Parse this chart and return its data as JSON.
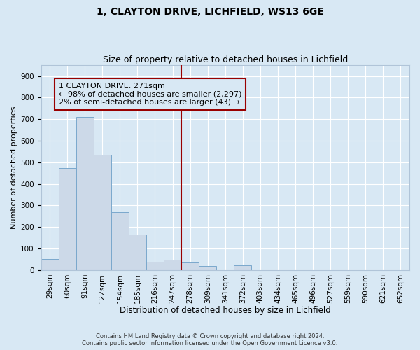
{
  "title1": "1, CLAYTON DRIVE, LICHFIELD, WS13 6GE",
  "title2": "Size of property relative to detached houses in Lichfield",
  "xlabel": "Distribution of detached houses by size in Lichfield",
  "ylabel": "Number of detached properties",
  "bar_labels": [
    "29sqm",
    "60sqm",
    "91sqm",
    "122sqm",
    "154sqm",
    "185sqm",
    "216sqm",
    "247sqm",
    "278sqm",
    "309sqm",
    "341sqm",
    "372sqm",
    "403sqm",
    "434sqm",
    "465sqm",
    "496sqm",
    "527sqm",
    "559sqm",
    "590sqm",
    "621sqm",
    "652sqm"
  ],
  "bar_heights": [
    52,
    475,
    710,
    535,
    270,
    165,
    40,
    47,
    35,
    18,
    0,
    22,
    0,
    0,
    0,
    0,
    0,
    0,
    0,
    0,
    0
  ],
  "bar_color": "#ccd9e8",
  "bar_edge_color": "#7aa8cc",
  "vline_x": 8.0,
  "vline_color": "#990000",
  "annotation_text": "1 CLAYTON DRIVE: 271sqm\n← 98% of detached houses are smaller (2,297)\n2% of semi-detached houses are larger (43) →",
  "annotation_box_color": "#990000",
  "ylim": [
    0,
    950
  ],
  "yticks": [
    0,
    100,
    200,
    300,
    400,
    500,
    600,
    700,
    800,
    900
  ],
  "background_color": "#d8e8f4",
  "grid_color": "#ffffff",
  "footer_text": "Contains HM Land Registry data © Crown copyright and database right 2024.\nContains public sector information licensed under the Open Government Licence v3.0.",
  "title1_fontsize": 10,
  "title2_fontsize": 9,
  "xlabel_fontsize": 8.5,
  "ylabel_fontsize": 8,
  "tick_fontsize": 7.5,
  "annotation_fontsize": 8
}
